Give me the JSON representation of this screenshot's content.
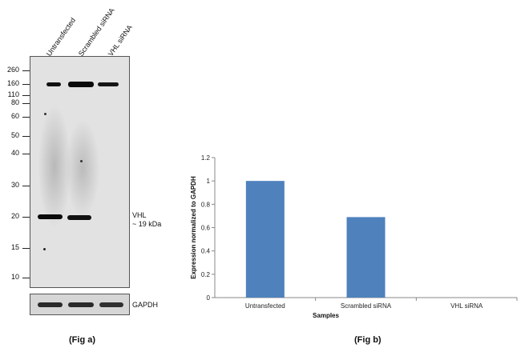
{
  "western_blot": {
    "lanes": [
      "Untransfected",
      "Scrambled siRNA",
      "VHL siRNA"
    ],
    "markers": [
      "260",
      "160",
      "110",
      "80",
      "60",
      "50",
      "40",
      "30",
      "20",
      "15",
      "10"
    ],
    "vhl_label_line1": "VHL",
    "vhl_label_line2": "~ 19 kDa",
    "gapdh_label": "GAPDH",
    "caption": "(Fig a)"
  },
  "chart_data": {
    "type": "bar",
    "categories": [
      "Untransfected",
      "Scrambled siRNA",
      "VHL siRNA"
    ],
    "values": [
      1.0,
      0.69,
      0
    ],
    "title": "",
    "xlabel": "Samples",
    "ylabel": "Expression normalized to GAPDH",
    "ylim": [
      0,
      1.2
    ],
    "yticks": [
      "0",
      "0.2",
      "0.4",
      "0.6",
      "0.8",
      "1",
      "1.2"
    ],
    "bar_color": "#4f81bd",
    "caption": "(Fig b)"
  }
}
